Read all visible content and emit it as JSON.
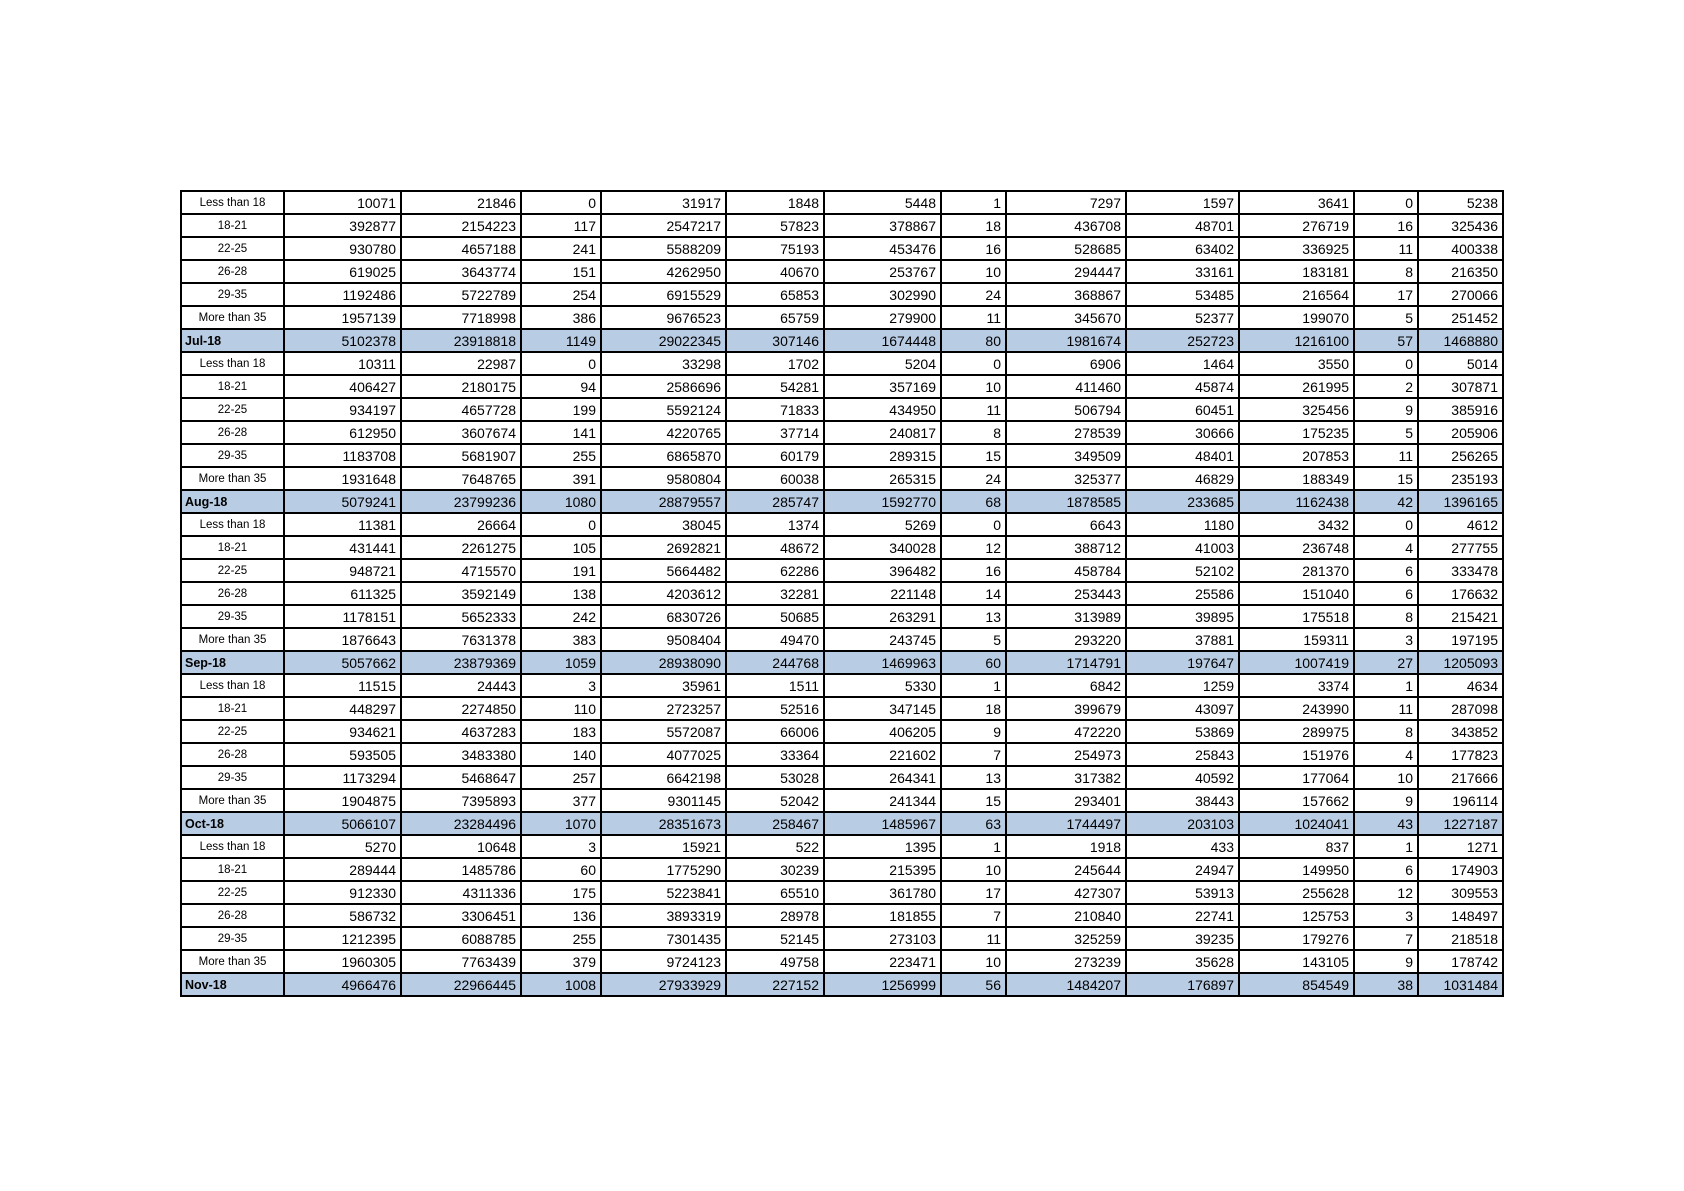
{
  "page": {
    "background_color": "#ffffff",
    "text_color": "#000000"
  },
  "table": {
    "highlight_color": "#B8CCE4",
    "border_color": "#000000",
    "age_group_labels": [
      "Less than 18",
      "18-21",
      "22-25",
      "26-28",
      "29-35",
      "More than 35"
    ],
    "month_labels": [
      "Jul-18",
      "Aug-18",
      "Sep-18",
      "Oct-18",
      "Nov-18"
    ],
    "rows": [
      {
        "type": "age",
        "label": "Less than 18",
        "values": [
          10071,
          21846,
          0,
          31917,
          1848,
          5448,
          1,
          7297,
          1597,
          3641,
          0,
          5238
        ]
      },
      {
        "type": "age",
        "label": "18-21",
        "values": [
          392877,
          2154223,
          117,
          2547217,
          57823,
          378867,
          18,
          436708,
          48701,
          276719,
          16,
          325436
        ]
      },
      {
        "type": "age",
        "label": "22-25",
        "values": [
          930780,
          4657188,
          241,
          5588209,
          75193,
          453476,
          16,
          528685,
          63402,
          336925,
          11,
          400338
        ]
      },
      {
        "type": "age",
        "label": "26-28",
        "values": [
          619025,
          3643774,
          151,
          4262950,
          40670,
          253767,
          10,
          294447,
          33161,
          183181,
          8,
          216350
        ]
      },
      {
        "type": "age",
        "label": "29-35",
        "values": [
          1192486,
          5722789,
          254,
          6915529,
          65853,
          302990,
          24,
          368867,
          53485,
          216564,
          17,
          270066
        ]
      },
      {
        "type": "age",
        "label": "More than 35",
        "values": [
          1957139,
          7718998,
          386,
          9676523,
          65759,
          279900,
          11,
          345670,
          52377,
          199070,
          5,
          251452
        ]
      },
      {
        "type": "month",
        "label": "Jul-18",
        "values": [
          5102378,
          23918818,
          1149,
          29022345,
          307146,
          1674448,
          80,
          1981674,
          252723,
          1216100,
          57,
          1468880
        ]
      },
      {
        "type": "age",
        "label": "Less than 18",
        "values": [
          10311,
          22987,
          0,
          33298,
          1702,
          5204,
          0,
          6906,
          1464,
          3550,
          0,
          5014
        ]
      },
      {
        "type": "age",
        "label": "18-21",
        "values": [
          406427,
          2180175,
          94,
          2586696,
          54281,
          357169,
          10,
          411460,
          45874,
          261995,
          2,
          307871
        ]
      },
      {
        "type": "age",
        "label": "22-25",
        "values": [
          934197,
          4657728,
          199,
          5592124,
          71833,
          434950,
          11,
          506794,
          60451,
          325456,
          9,
          385916
        ]
      },
      {
        "type": "age",
        "label": "26-28",
        "values": [
          612950,
          3607674,
          141,
          4220765,
          37714,
          240817,
          8,
          278539,
          30666,
          175235,
          5,
          205906
        ]
      },
      {
        "type": "age",
        "label": "29-35",
        "values": [
          1183708,
          5681907,
          255,
          6865870,
          60179,
          289315,
          15,
          349509,
          48401,
          207853,
          11,
          256265
        ]
      },
      {
        "type": "age",
        "label": "More than 35",
        "values": [
          1931648,
          7648765,
          391,
          9580804,
          60038,
          265315,
          24,
          325377,
          46829,
          188349,
          15,
          235193
        ]
      },
      {
        "type": "month",
        "label": "Aug-18",
        "values": [
          5079241,
          23799236,
          1080,
          28879557,
          285747,
          1592770,
          68,
          1878585,
          233685,
          1162438,
          42,
          1396165
        ]
      },
      {
        "type": "age",
        "label": "Less than 18",
        "values": [
          11381,
          26664,
          0,
          38045,
          1374,
          5269,
          0,
          6643,
          1180,
          3432,
          0,
          4612
        ]
      },
      {
        "type": "age",
        "label": "18-21",
        "values": [
          431441,
          2261275,
          105,
          2692821,
          48672,
          340028,
          12,
          388712,
          41003,
          236748,
          4,
          277755
        ]
      },
      {
        "type": "age",
        "label": "22-25",
        "values": [
          948721,
          4715570,
          191,
          5664482,
          62286,
          396482,
          16,
          458784,
          52102,
          281370,
          6,
          333478
        ]
      },
      {
        "type": "age",
        "label": "26-28",
        "values": [
          611325,
          3592149,
          138,
          4203612,
          32281,
          221148,
          14,
          253443,
          25586,
          151040,
          6,
          176632
        ]
      },
      {
        "type": "age",
        "label": "29-35",
        "values": [
          1178151,
          5652333,
          242,
          6830726,
          50685,
          263291,
          13,
          313989,
          39895,
          175518,
          8,
          215421
        ]
      },
      {
        "type": "age",
        "label": "More than 35",
        "values": [
          1876643,
          7631378,
          383,
          9508404,
          49470,
          243745,
          5,
          293220,
          37881,
          159311,
          3,
          197195
        ]
      },
      {
        "type": "month",
        "label": "Sep-18",
        "values": [
          5057662,
          23879369,
          1059,
          28938090,
          244768,
          1469963,
          60,
          1714791,
          197647,
          1007419,
          27,
          1205093
        ]
      },
      {
        "type": "age",
        "label": "Less than 18",
        "values": [
          11515,
          24443,
          3,
          35961,
          1511,
          5330,
          1,
          6842,
          1259,
          3374,
          1,
          4634
        ]
      },
      {
        "type": "age",
        "label": "18-21",
        "values": [
          448297,
          2274850,
          110,
          2723257,
          52516,
          347145,
          18,
          399679,
          43097,
          243990,
          11,
          287098
        ]
      },
      {
        "type": "age",
        "label": "22-25",
        "values": [
          934621,
          4637283,
          183,
          5572087,
          66006,
          406205,
          9,
          472220,
          53869,
          289975,
          8,
          343852
        ]
      },
      {
        "type": "age",
        "label": "26-28",
        "values": [
          593505,
          3483380,
          140,
          4077025,
          33364,
          221602,
          7,
          254973,
          25843,
          151976,
          4,
          177823
        ]
      },
      {
        "type": "age",
        "label": "29-35",
        "values": [
          1173294,
          5468647,
          257,
          6642198,
          53028,
          264341,
          13,
          317382,
          40592,
          177064,
          10,
          217666
        ]
      },
      {
        "type": "age",
        "label": "More than 35",
        "values": [
          1904875,
          7395893,
          377,
          9301145,
          52042,
          241344,
          15,
          293401,
          38443,
          157662,
          9,
          196114
        ]
      },
      {
        "type": "month",
        "label": "Oct-18",
        "values": [
          5066107,
          23284496,
          1070,
          28351673,
          258467,
          1485967,
          63,
          1744497,
          203103,
          1024041,
          43,
          1227187
        ]
      },
      {
        "type": "age",
        "label": "Less than 18",
        "values": [
          5270,
          10648,
          3,
          15921,
          522,
          1395,
          1,
          1918,
          433,
          837,
          1,
          1271
        ]
      },
      {
        "type": "age",
        "label": "18-21",
        "values": [
          289444,
          1485786,
          60,
          1775290,
          30239,
          215395,
          10,
          245644,
          24947,
          149950,
          6,
          174903
        ]
      },
      {
        "type": "age",
        "label": "22-25",
        "values": [
          912330,
          4311336,
          175,
          5223841,
          65510,
          361780,
          17,
          427307,
          53913,
          255628,
          12,
          309553
        ]
      },
      {
        "type": "age",
        "label": "26-28",
        "values": [
          586732,
          3306451,
          136,
          3893319,
          28978,
          181855,
          7,
          210840,
          22741,
          125753,
          3,
          148497
        ]
      },
      {
        "type": "age",
        "label": "29-35",
        "values": [
          1212395,
          6088785,
          255,
          7301435,
          52145,
          273103,
          11,
          325259,
          39235,
          179276,
          7,
          218518
        ]
      },
      {
        "type": "age",
        "label": "More than 35",
        "values": [
          1960305,
          7763439,
          379,
          9724123,
          49758,
          223471,
          10,
          273239,
          35628,
          143105,
          9,
          178742
        ]
      },
      {
        "type": "month",
        "label": "Nov-18",
        "values": [
          4966476,
          22966445,
          1008,
          27933929,
          227152,
          1256999,
          56,
          1484207,
          176897,
          854549,
          38,
          1031484
        ]
      }
    ]
  }
}
